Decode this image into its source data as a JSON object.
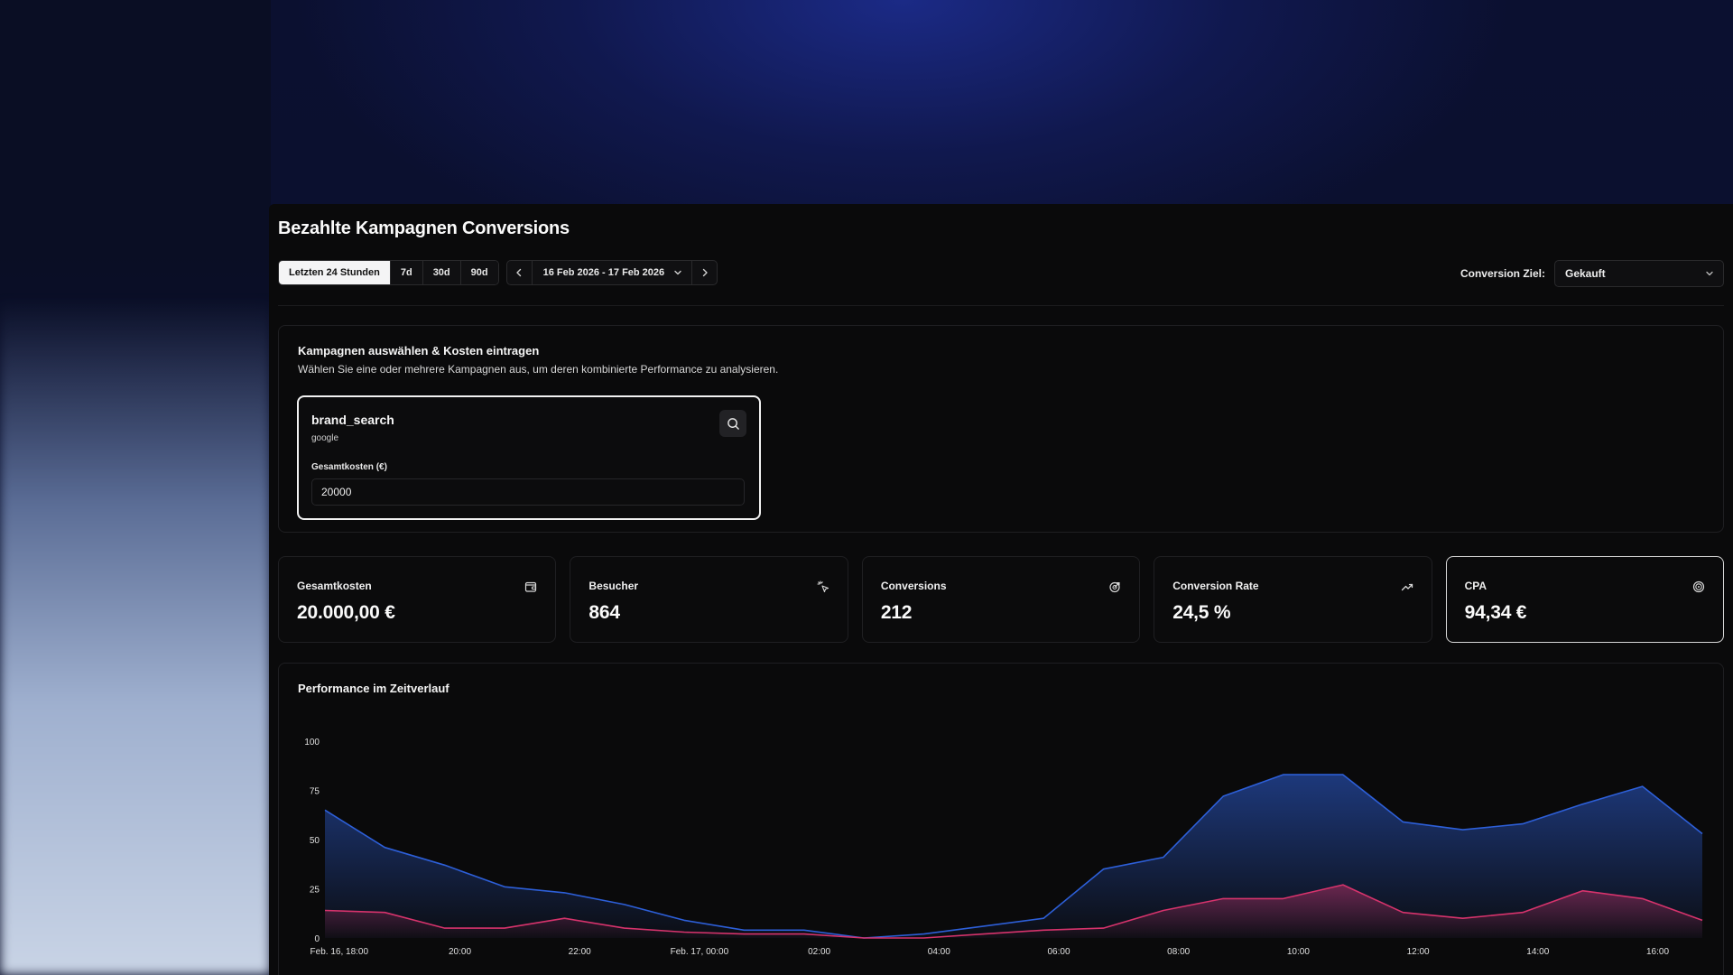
{
  "page": {
    "title": "Bezahlte Kampagnen Conversions"
  },
  "toolbar": {
    "ranges": [
      "Letzten 24 Stunden",
      "7d",
      "30d",
      "90d"
    ],
    "active_range": "Letzten 24 Stunden",
    "date_range": "16 Feb 2026 - 17 Feb 2026",
    "icons": {
      "prev": "chevron-left-icon",
      "next": "chevron-right-icon",
      "dropdown": "chevron-down-icon"
    }
  },
  "goal": {
    "label": "Conversion Ziel:",
    "selected": "Gekauft"
  },
  "campaigns": {
    "title": "Kampagnen auswählen & Kosten eintragen",
    "subtitle": "Wählen Sie eine oder mehrere Kampagnen aus, um deren kombinierte Performance zu analysieren.",
    "card": {
      "name": "brand_search",
      "source": "google",
      "cost_label": "Gesamtkosten (€)",
      "cost_value": "20000"
    }
  },
  "kpis": [
    {
      "label": "Gesamtkosten",
      "value": "20.000,00 €",
      "icon": "wallet-icon"
    },
    {
      "label": "Besucher",
      "value": "864",
      "icon": "cursor-click-icon"
    },
    {
      "label": "Conversions",
      "value": "212",
      "icon": "target-arrow-icon"
    },
    {
      "label": "Conversion Rate",
      "value": "24,5 %",
      "icon": "trending-up-icon"
    },
    {
      "label": "CPA",
      "value": "94,34 €",
      "icon": "target-icon",
      "selected": true
    }
  ],
  "colors": {
    "series_blue": "#2d5fd8",
    "series_pink": "#d6336c",
    "accent": "#f4f4f5"
  },
  "chart_data": {
    "type": "area",
    "title": "Performance im Zeitverlauf",
    "ylim": [
      0,
      100
    ],
    "yticks": [
      0,
      25,
      50,
      75,
      100
    ],
    "xtick_labels": [
      "Feb. 16, 18:00",
      "20:00",
      "22:00",
      "Feb. 17, 00:00",
      "02:00",
      "04:00",
      "06:00",
      "08:00",
      "10:00",
      "12:00",
      "14:00",
      "16:00"
    ],
    "x": [
      "Feb. 16, 17:00",
      "Feb. 16, 18:00",
      "Feb. 16, 19:00",
      "Feb. 16, 20:00",
      "Feb. 16, 21:00",
      "Feb. 16, 22:00",
      "Feb. 16, 23:00",
      "Feb. 17, 00:00",
      "Feb. 17, 01:00",
      "Feb. 17, 02:00",
      "Feb. 17, 03:00",
      "Feb. 17, 04:00",
      "Feb. 17, 05:00",
      "Feb. 17, 06:00",
      "Feb. 17, 07:00",
      "Feb. 17, 08:00",
      "Feb. 17, 09:00",
      "Feb. 17, 10:00",
      "Feb. 17, 11:00",
      "Feb. 17, 12:00",
      "Feb. 17, 13:00",
      "Feb. 17, 14:00",
      "Feb. 17, 15:00",
      "Feb. 17, 16:00"
    ],
    "series": [
      {
        "values": [
          65,
          46,
          37,
          26,
          23,
          17,
          9,
          4,
          4,
          0,
          2,
          6,
          10,
          35,
          41,
          72,
          83,
          83,
          59,
          55,
          58,
          68,
          77,
          53
        ]
      },
      {
        "values": [
          14,
          13,
          5,
          5,
          10,
          5,
          3,
          2,
          2,
          0,
          0,
          2,
          4,
          5,
          14,
          20,
          20,
          27,
          13,
          10,
          13,
          24,
          20,
          9
        ]
      }
    ]
  }
}
